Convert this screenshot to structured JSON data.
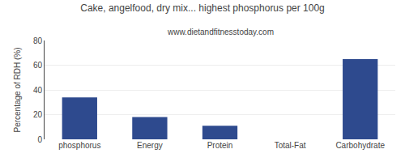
{
  "chart_data": {
    "type": "bar",
    "title": "Cake, angelfood, dry mix... highest phosphorus per 100g",
    "subtitle": "www.dietandfitnesstoday.com",
    "categories": [
      "phosphorus",
      "Energy",
      "Protein",
      "Total-Fat",
      "Carbohydrate"
    ],
    "values": [
      34,
      18,
      11,
      0,
      65
    ],
    "color": "#2e4a8e",
    "ylabel": "Percentage of RDH (%)",
    "ylim": [
      0,
      80
    ],
    "yticks": [
      0,
      20,
      40,
      60,
      80
    ],
    "grid": true
  }
}
